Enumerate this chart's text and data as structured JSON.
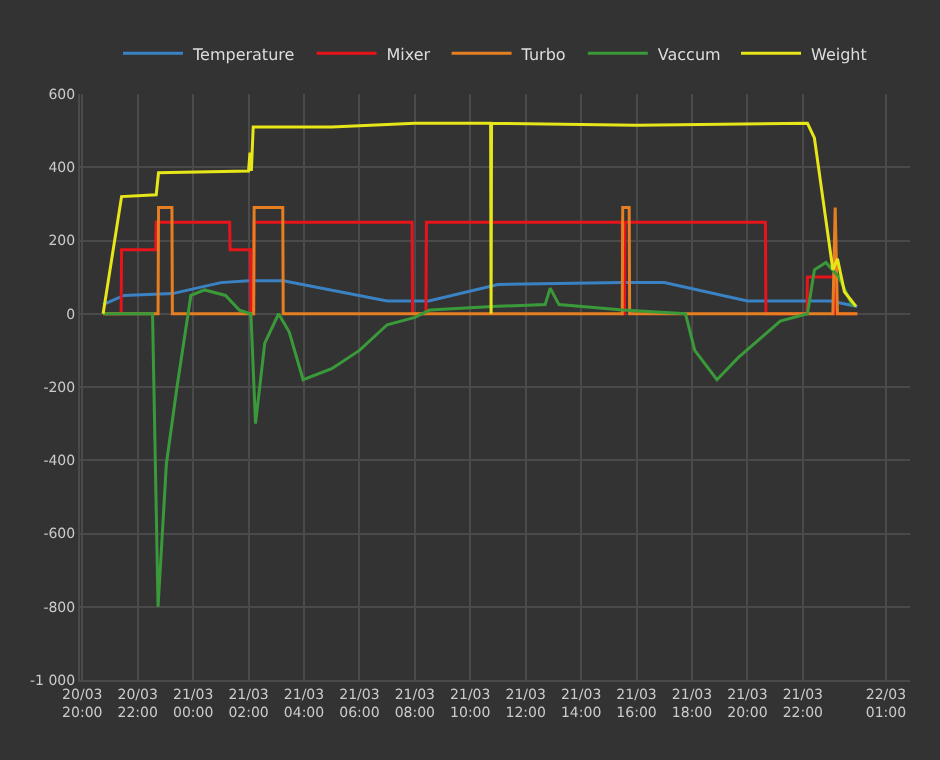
{
  "chart_data": {
    "type": "line",
    "legend": "top",
    "grid": true,
    "marker": "none",
    "line_style": "solid",
    "xlim": [
      "--03-20T19:55",
      "--03-22T01:52"
    ],
    "xticks": [
      {
        "value": "--03-20T20:00",
        "label": "20/03 20:00"
      },
      {
        "value": "--03-20T22:00",
        "label": "20/03 22:00"
      },
      {
        "value": "--03-21T00:00",
        "label": "21/03 00:00"
      },
      {
        "value": "--03-21T02:00",
        "label": "21/03 02:00"
      },
      {
        "value": "--03-21T04:00",
        "label": "21/03 04:00"
      },
      {
        "value": "--03-21T06:00",
        "label": "21/03 06:00"
      },
      {
        "value": "--03-21T08:00",
        "label": "21/03 08:00"
      },
      {
        "value": "--03-21T10:00",
        "label": "21/03 10:00"
      },
      {
        "value": "--03-21T12:00",
        "label": "21/03 12:00"
      },
      {
        "value": "--03-21T14:00",
        "label": "21/03 14:00"
      },
      {
        "value": "--03-21T16:00",
        "label": "21/03 16:00"
      },
      {
        "value": "--03-21T18:00",
        "label": "21/03 18:00"
      },
      {
        "value": "--03-21T20:00",
        "label": "21/03 20:00"
      },
      {
        "value": "--03-21T22:00",
        "label": "21/03 22:00"
      },
      {
        "value": "--03-22T01:00",
        "label": "22/03 01:00"
      }
    ],
    "ylim": [
      -1000,
      600
    ],
    "yticks": [
      {
        "value": -1000,
        "label": "-1 000"
      },
      -800,
      -600,
      -400,
      -200,
      0,
      200,
      400,
      600
    ],
    "series": [
      {
        "name": "Temperature",
        "color": "#3b82c4",
        "x": [
          "--03-20T20:45",
          "--03-20T21:30",
          "--03-20T23:15",
          "--03-21T01:00",
          "--03-21T02:00",
          "--03-21T03:15",
          "--03-21T07:00",
          "--03-21T08:30",
          "--03-21T11:00",
          "--03-21T15:30",
          "--03-21T17:00",
          "--03-21T20:00",
          "--03-21T23:00",
          "--03-21T23:58"
        ],
        "values": [
          25,
          50,
          55,
          85,
          90,
          90,
          35,
          35,
          80,
          85,
          85,
          35,
          35,
          20
        ]
      },
      {
        "name": "Mixer",
        "color": "#e8141c",
        "x": [
          "--03-20T20:45",
          "--03-20T21:24",
          "--03-20T21:25",
          "--03-20T22:39",
          "--03-20T22:40",
          "--03-21T01:19",
          "--03-21T01:20",
          "--03-21T02:04",
          "--03-21T02:05",
          "--03-21T02:11",
          "--03-21T02:12",
          "--03-21T07:54",
          "--03-21T07:55",
          "--03-21T08:24",
          "--03-21T08:25",
          "--03-21T15:29",
          "--03-21T15:30",
          "--03-21T15:34",
          "--03-21T15:35",
          "--03-21T20:39",
          "--03-21T20:40",
          "--03-21T22:09",
          "--03-21T22:10",
          "--03-21T23:09",
          "--03-21T23:10",
          "--03-21T23:58"
        ],
        "values": [
          0,
          0,
          175,
          175,
          250,
          250,
          175,
          175,
          0,
          0,
          250,
          250,
          0,
          0,
          250,
          250,
          0,
          0,
          250,
          250,
          0,
          0,
          100,
          100,
          0,
          0
        ]
      },
      {
        "name": "Turbo",
        "color": "#e67e22",
        "x": [
          "--03-20T20:45",
          "--03-20T22:44",
          "--03-20T22:45",
          "--03-20T23:14",
          "--03-20T23:15",
          "--03-21T02:11",
          "--03-21T02:12",
          "--03-21T03:14",
          "--03-21T03:15",
          "--03-21T15:29",
          "--03-21T15:30",
          "--03-21T15:44",
          "--03-21T15:45",
          "--03-21T23:05",
          "--03-21T23:10",
          "--03-21T23:15",
          "--03-21T23:58"
        ],
        "values": [
          0,
          0,
          290,
          290,
          0,
          0,
          290,
          290,
          0,
          0,
          290,
          290,
          0,
          0,
          290,
          0,
          0
        ]
      },
      {
        "name": "Vaccum",
        "color": "#3a9a3a",
        "x": [
          "--03-20T20:45",
          "--03-20T22:32",
          "--03-20T22:44",
          "--03-20T23:02",
          "--03-20T23:25",
          "--03-20T23:55",
          "--03-21T00:25",
          "--03-21T01:10",
          "--03-21T01:40",
          "--03-21T02:05",
          "--03-21T02:15",
          "--03-21T02:35",
          "--03-21T03:05",
          "--03-21T03:28",
          "--03-21T03:58",
          "--03-21T05:00",
          "--03-21T06:00",
          "--03-21T07:00",
          "--03-21T08:00",
          "--03-21T08:32",
          "--03-21T10:48",
          "--03-21T12:42",
          "--03-21T12:53",
          "--03-21T13:12",
          "--03-21T15:30",
          "--03-21T17:46",
          "--03-21T18:06",
          "--03-21T18:54",
          "--03-21T19:40",
          "--03-21T21:11",
          "--03-21T22:10",
          "--03-21T22:25",
          "--03-21T22:50",
          "--03-21T23:18",
          "--03-21T23:48"
        ],
        "values": [
          0,
          0,
          -800,
          -410,
          -200,
          50,
          65,
          50,
          10,
          0,
          -300,
          -80,
          0,
          -50,
          -180,
          -150,
          -100,
          -30,
          -10,
          10,
          20,
          25,
          70,
          25,
          10,
          0,
          -100,
          -180,
          -120,
          -20,
          0,
          120,
          140,
          100,
          20
        ]
      },
      {
        "name": "Weight",
        "color": "#e6e619",
        "x": [
          "--03-20T20:45",
          "--03-20T21:25",
          "--03-20T22:40",
          "--03-20T22:45",
          "--03-21T02:00",
          "--03-21T02:03",
          "--03-21T02:06",
          "--03-21T02:10",
          "--03-21T05:00",
          "--03-21T08:00",
          "--03-21T10:44",
          "--03-21T10:45",
          "--03-21T10:46",
          "--03-21T16:00",
          "--03-21T22:10",
          "--03-21T22:25",
          "--03-21T22:45",
          "--03-21T23:05",
          "--03-21T23:15",
          "--03-21T23:30",
          "--03-21T23:55"
        ],
        "values": [
          0,
          320,
          325,
          385,
          390,
          440,
          390,
          510,
          510,
          520,
          520,
          0,
          520,
          515,
          520,
          480,
          300,
          120,
          150,
          60,
          20
        ]
      }
    ]
  }
}
